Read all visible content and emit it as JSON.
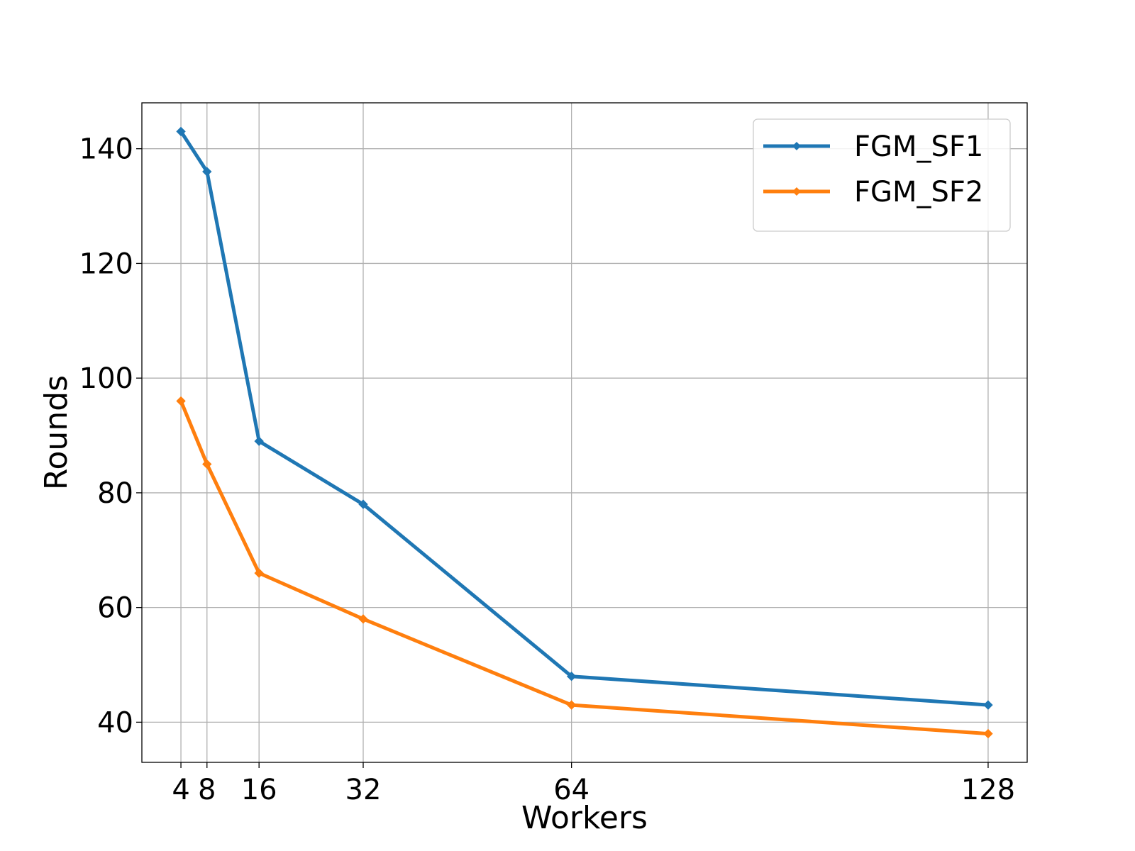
{
  "chart_data": {
    "type": "line",
    "title": "",
    "xlabel": "Workers",
    "ylabel": "Rounds",
    "x": [
      4,
      8,
      16,
      32,
      64,
      128
    ],
    "x_ticks": [
      4,
      8,
      16,
      32,
      64,
      128
    ],
    "y_ticks": [
      40,
      60,
      80,
      100,
      120,
      140
    ],
    "xlim": [
      -2,
      134
    ],
    "ylim": [
      33,
      148
    ],
    "grid": true,
    "legend_position": "top-right",
    "series": [
      {
        "name": "FGM_SF1",
        "color": "#1f77b4",
        "marker": "diamond",
        "values": [
          143,
          136,
          89,
          78,
          48,
          43
        ]
      },
      {
        "name": "FGM_SF2",
        "color": "#ff7f0e",
        "marker": "diamond",
        "values": [
          96,
          85,
          66,
          58,
          43,
          38
        ]
      }
    ]
  }
}
